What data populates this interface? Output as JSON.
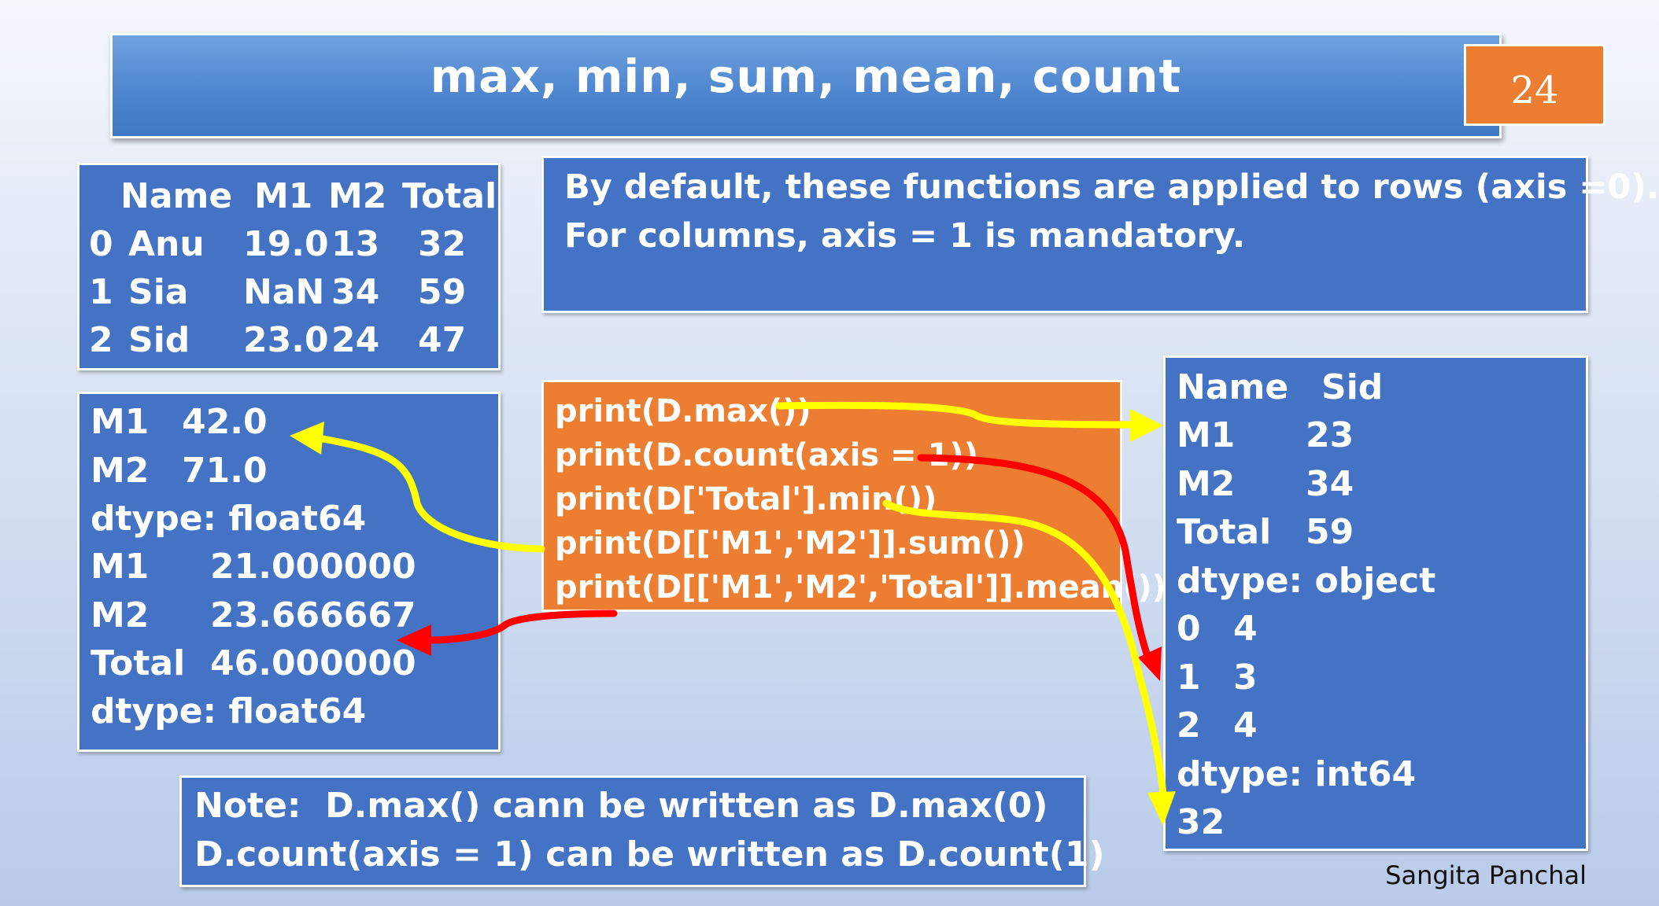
{
  "slide": {
    "title": "max, min, sum, mean, count",
    "page_number": "24",
    "author": "Sangita Panchal"
  },
  "dataframe": {
    "headers": [
      "Name",
      "M1",
      "M2",
      "Total"
    ],
    "rows": [
      [
        "0",
        "Anu",
        "19.0",
        "13",
        "32"
      ],
      [
        "1",
        "Sia",
        "NaN",
        "34",
        "59"
      ],
      [
        "2",
        "Sid",
        "23.0",
        "24",
        "47"
      ]
    ]
  },
  "info": {
    "line1": "By default, these functions are applied to rows (axis =0).",
    "line2": "For columns, axis = 1 is mandatory."
  },
  "code": [
    "print(D.max())",
    "print(D.count(axis = 1))",
    "print(D['Total'].min())",
    "print(D[['M1','M2']].sum())",
    "print(D[['M1','M2','Total']].mean())"
  ],
  "left_output": [
    [
      "M1",
      "42.0"
    ],
    [
      "M2",
      "71.0"
    ],
    [
      "dtype: float64",
      ""
    ],
    [
      "M1",
      "21.000000"
    ],
    [
      "M2",
      "23.666667"
    ],
    [
      "Total",
      "46.000000"
    ],
    [
      "dtype: float64",
      ""
    ]
  ],
  "right_output": [
    [
      "Name",
      "Sid"
    ],
    [
      "M1",
      "23"
    ],
    [
      "M2",
      "34"
    ],
    [
      "Total",
      "59"
    ],
    [
      "dtype: object",
      ""
    ],
    [
      "0",
      "4"
    ],
    [
      "1",
      "3"
    ],
    [
      "2",
      "4"
    ],
    [
      "dtype: int64",
      ""
    ],
    [
      "32",
      ""
    ]
  ],
  "note": {
    "line1": "Note:  D.max() cann be written as D.max(0)",
    "line2": "D.count(axis = 1) can be written as D.count(1)"
  },
  "colors": {
    "box_blue": "#4472c4",
    "code_orange": "#ed7d31",
    "arrow_yellow": "#ffff00",
    "arrow_red": "#ff0000"
  }
}
